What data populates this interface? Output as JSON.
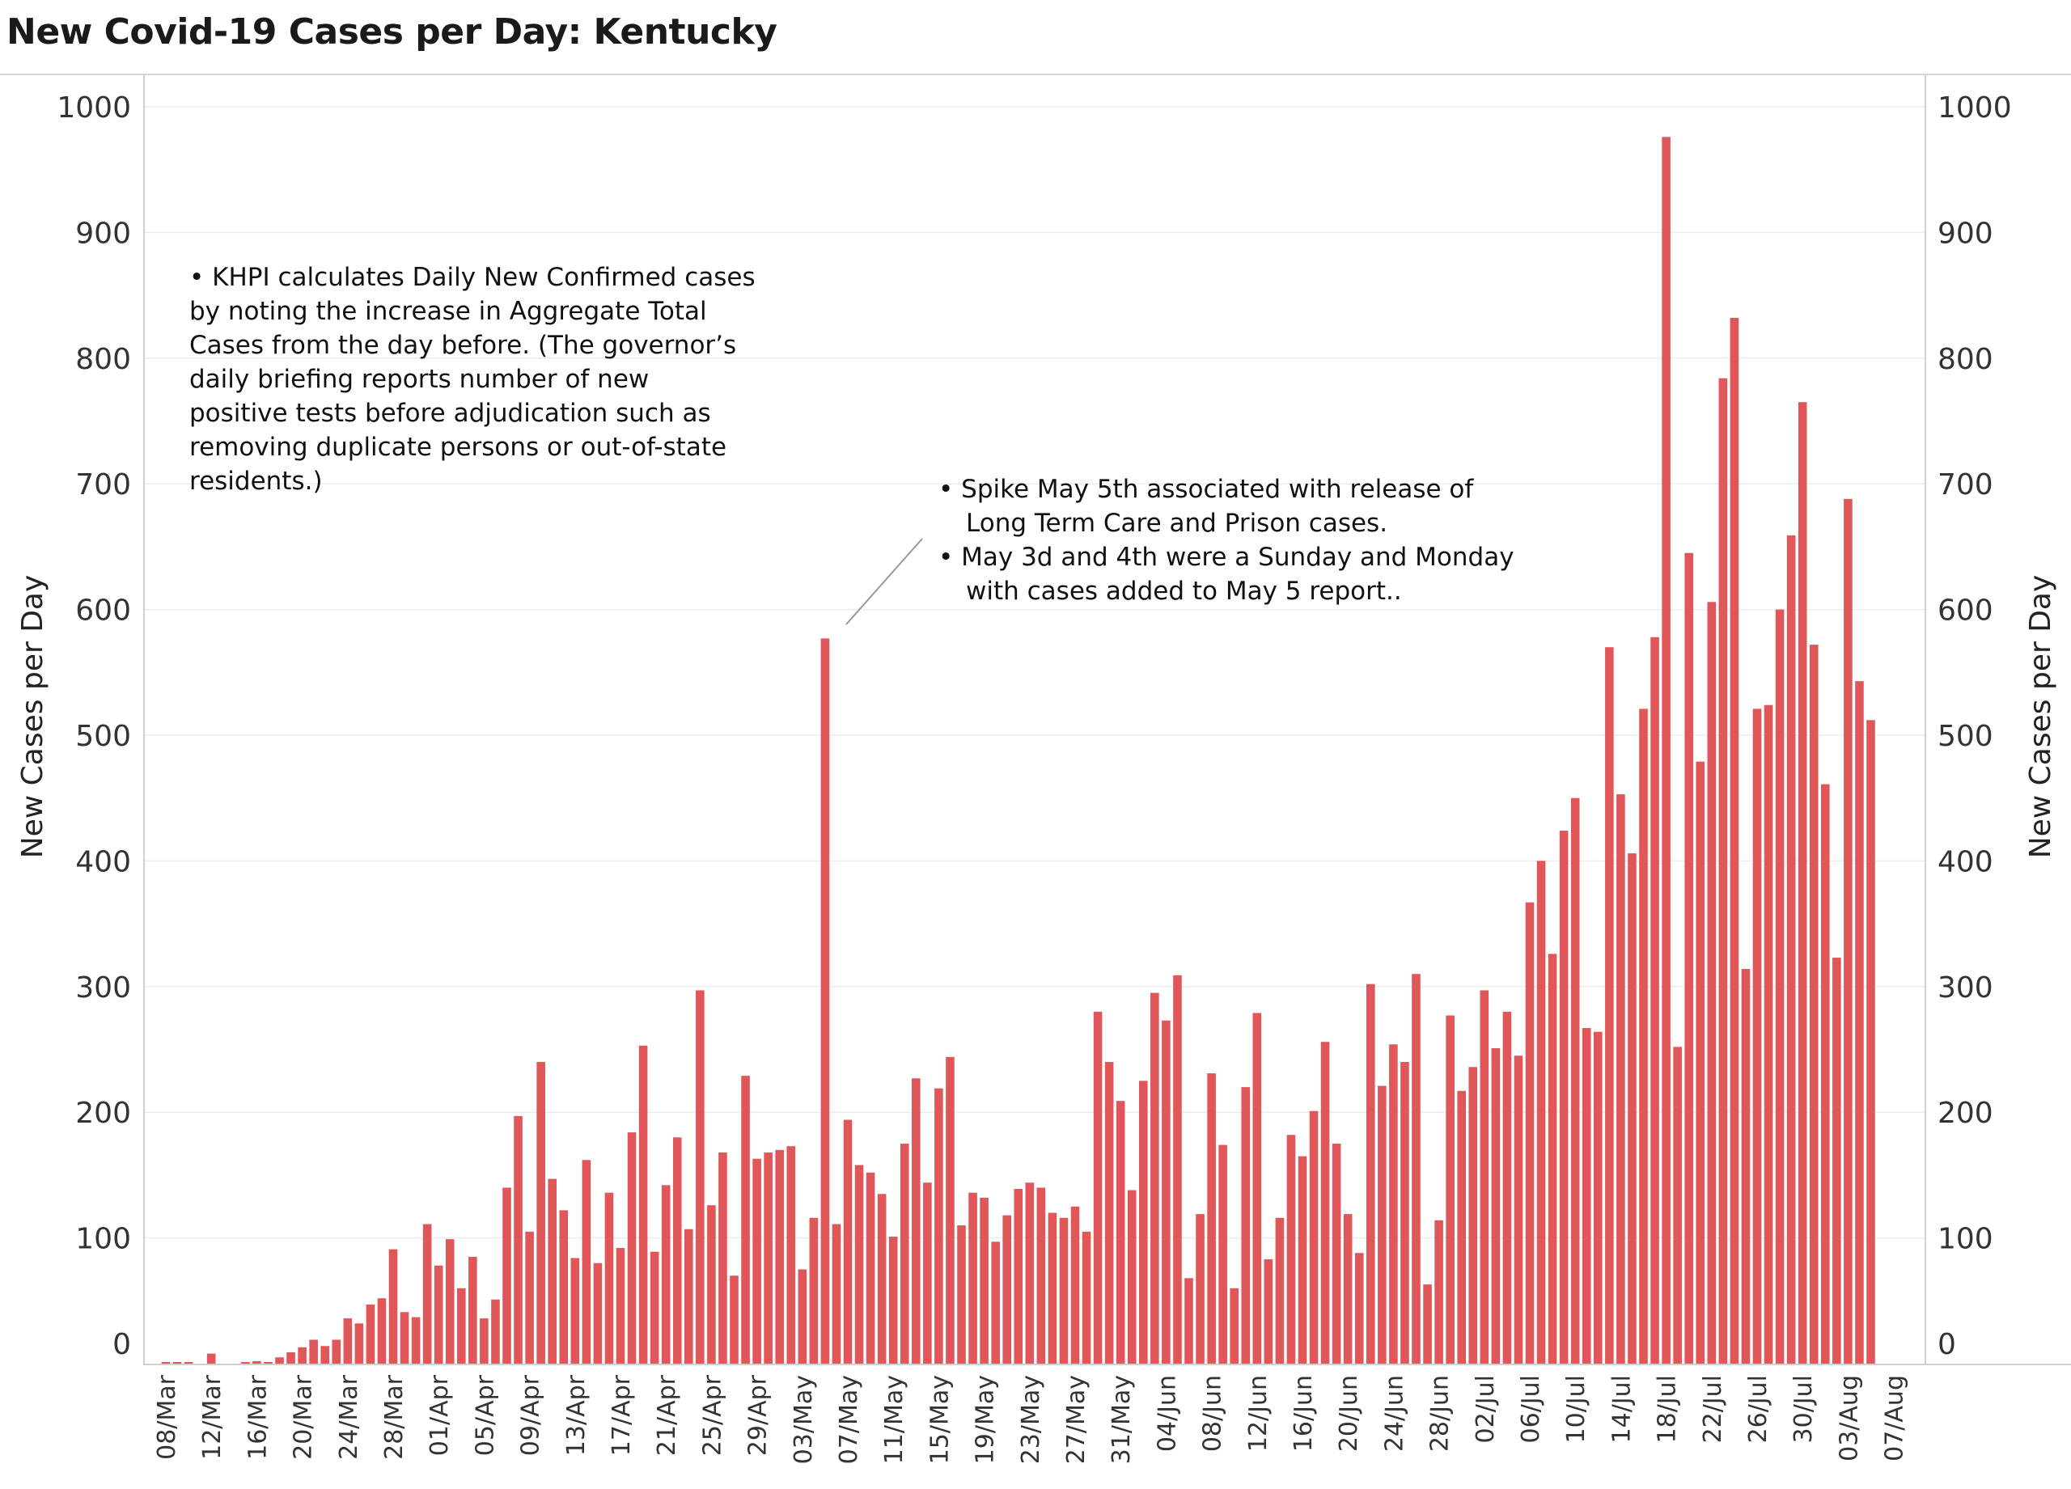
{
  "title": "New Covid-19 Cases per Day: Kentucky",
  "chart_data": {
    "type": "bar",
    "title": "New Covid-19 Cases per Day: Kentucky",
    "xlabel": "",
    "ylabel": "New Cases per Day",
    "ylabel_right": "New Cases per Day",
    "ylim": [
      0,
      1000
    ],
    "yticks": [
      0,
      100,
      200,
      300,
      400,
      500,
      600,
      700,
      800,
      900,
      1000
    ],
    "grid": true,
    "color": "#e15759",
    "start_date": "2020-03-08",
    "xtick_labels": [
      "08/Mar",
      "12/Mar",
      "16/Mar",
      "20/Mar",
      "24/Mar",
      "28/Mar",
      "01/Apr",
      "05/Apr",
      "09/Apr",
      "13/Apr",
      "17/Apr",
      "21/Apr",
      "25/Apr",
      "29/Apr",
      "03/May",
      "07/May",
      "11/May",
      "15/May",
      "19/May",
      "23/May",
      "27/May",
      "31/May",
      "04/Jun",
      "08/Jun",
      "12/Jun",
      "16/Jun",
      "20/Jun",
      "24/Jun",
      "28/Jun",
      "02/Jul",
      "06/Jul",
      "10/Jul",
      "14/Jul",
      "18/Jul",
      "22/Jul",
      "26/Jul",
      "30/Jul",
      "03/Aug",
      "07/Aug"
    ],
    "values": [
      1,
      1,
      1,
      0,
      8,
      0,
      0,
      1,
      2,
      1,
      5,
      9,
      13,
      19,
      14,
      19,
      36,
      32,
      47,
      52,
      91,
      41,
      37,
      111,
      78,
      99,
      60,
      85,
      36,
      51,
      140,
      197,
      105,
      240,
      147,
      122,
      84,
      162,
      80,
      136,
      92,
      184,
      253,
      89,
      142,
      180,
      107,
      297,
      126,
      168,
      70,
      229,
      163,
      168,
      170,
      173,
      75,
      116,
      577,
      111,
      194,
      158,
      152,
      135,
      101,
      175,
      227,
      144,
      219,
      244,
      110,
      136,
      132,
      97,
      118,
      139,
      144,
      140,
      120,
      116,
      125,
      105,
      280,
      240,
      209,
      138,
      225,
      295,
      273,
      309,
      68,
      119,
      231,
      174,
      60,
      220,
      279,
      83,
      116,
      182,
      165,
      201,
      256,
      175,
      119,
      88,
      302,
      221,
      254,
      240,
      310,
      63,
      114,
      277,
      217,
      236,
      297,
      251,
      280,
      245,
      367,
      400,
      326,
      424,
      450,
      267,
      264,
      570,
      453,
      406,
      521,
      578,
      976,
      252,
      645,
      479,
      606,
      784,
      832,
      314,
      521,
      524,
      600,
      659,
      765,
      572,
      461,
      323,
      688,
      543,
      512
    ]
  },
  "annotations": {
    "note1": [
      "• KHPI calculates Daily New Confirmed cases",
      "by noting the increase in Aggregate Total",
      "Cases from the day before.  (The governor’s",
      "daily briefing reports number of new",
      "positive tests before adjudication such as",
      "removing duplicate persons or out-of-state",
      "residents.)"
    ],
    "note2_line1": "• Spike May 5th associated with release of",
    "note2_line2": "Long Term Care and Prison cases.",
    "note2_line3": "• May 3d and 4th were a Sunday and Monday",
    "note2_line4": "with cases added to May 5 report.."
  }
}
